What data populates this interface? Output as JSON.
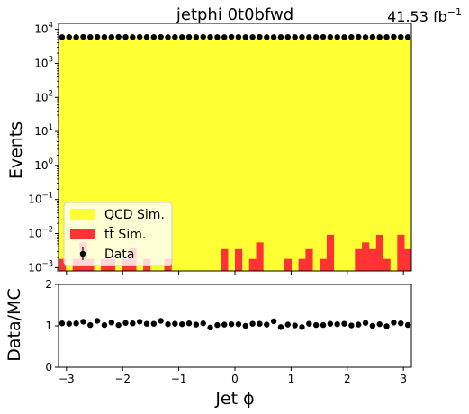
{
  "chart_data": [
    {
      "type": "bar",
      "title": "jetphi  0t0bfwd",
      "lumi_label": "41.53 fb",
      "lumi_exponent": "−1",
      "ylabel": "Events",
      "yscale": "log",
      "xlim": [
        -3.1416,
        3.1416
      ],
      "ylim": [
        0.0008,
        15000
      ],
      "bin_edges_range": [
        -3.1416,
        3.1416
      ],
      "n_bins": 50,
      "y_ticks": [
        {
          "mant": "10",
          "exp": "−3",
          "value": 0.001
        },
        {
          "mant": "10",
          "exp": "−2",
          "value": 0.01
        },
        {
          "mant": "10",
          "exp": "−1",
          "value": 0.1
        },
        {
          "mant": "10",
          "exp": "0",
          "value": 1
        },
        {
          "mant": "10",
          "exp": "1",
          "value": 10
        },
        {
          "mant": "10",
          "exp": "2",
          "value": 100
        },
        {
          "mant": "10",
          "exp": "3",
          "value": 1000
        },
        {
          "mant": "10",
          "exp": "4",
          "value": 10000
        }
      ],
      "series": [
        {
          "name": "QCD Sim.",
          "color": "#ffff33",
          "style": "stacked-fill",
          "values": [
            5900,
            5900,
            5900,
            5900,
            5900,
            5900,
            5900,
            5900,
            5900,
            5900,
            5900,
            5900,
            5900,
            5900,
            5900,
            5900,
            5900,
            5900,
            5900,
            5900,
            5900,
            5900,
            5900,
            5900,
            5900,
            5900,
            5900,
            5900,
            5900,
            5900,
            5900,
            5900,
            5900,
            5900,
            5900,
            5900,
            5900,
            5900,
            5900,
            5900,
            5900,
            5900,
            5900,
            5900,
            5900,
            5900,
            5900,
            5900,
            5900,
            5900
          ]
        },
        {
          "name": "tt̄ Sim.",
          "color": "#ff3333",
          "style": "bar",
          "values": [
            0.0018,
            0,
            0.0018,
            0.0055,
            0.0018,
            0,
            0.0018,
            0.0018,
            0,
            0.0018,
            0.0037,
            0,
            0.0018,
            0,
            0,
            0.0018,
            0,
            0,
            0,
            0,
            0,
            0,
            0,
            0.0035,
            0,
            0.0035,
            0,
            0.0018,
            0.0055,
            0,
            0,
            0,
            0.0018,
            0,
            0.0018,
            0.0035,
            0,
            0.0018,
            0.0092,
            0,
            0,
            0,
            0.0035,
            0.0055,
            0.0035,
            0.0092,
            0.0018,
            0,
            0.0092,
            0.0035
          ]
        },
        {
          "name": "Data",
          "color": "#000000",
          "style": "points",
          "values": [
            5900,
            5950,
            5900,
            6000,
            5950,
            6000,
            5950,
            5900,
            6000,
            5950,
            5900,
            6000,
            5950,
            5950,
            6000,
            5900,
            5950,
            5900,
            5950,
            5900,
            6000,
            5950,
            5900,
            5900,
            6000,
            5950,
            5900,
            5950,
            6000,
            5900,
            5900,
            5950,
            5950,
            5900,
            5950,
            5900,
            5900,
            6000,
            5950,
            5950,
            5900,
            5950,
            6000,
            5900,
            5950,
            5900,
            5950,
            6000,
            5950,
            5900
          ]
        }
      ],
      "legend": {
        "placement": "lower-left",
        "entries": [
          "QCD Sim.",
          "tt̄ Sim.",
          "Data"
        ]
      }
    },
    {
      "type": "scatter",
      "ylabel": "Data/MC",
      "xlabel": "Jet ϕ",
      "xlim": [
        -3.1416,
        3.1416
      ],
      "ylim": [
        0,
        2
      ],
      "y_ticks": [
        "0",
        "1",
        "2"
      ],
      "x_ticks": [
        "−3",
        "−2",
        "−1",
        "0",
        "1",
        "2",
        "3"
      ],
      "x_tick_values": [
        -3,
        -2,
        -1,
        0,
        1,
        2,
        3
      ],
      "ratio_values": [
        1.06,
        1.05,
        1.06,
        1.1,
        1.02,
        1.12,
        1.02,
        1.08,
        1.02,
        1.07,
        1.06,
        1.1,
        1.05,
        1.05,
        1.12,
        1.04,
        1.05,
        1.04,
        1.06,
        1.03,
        1.06,
        0.96,
        1.02,
        1.03,
        1.04,
        1.04,
        1.0,
        1.05,
        1.05,
        1.03,
        1.11,
        0.97,
        1.03,
        1.01,
        0.97,
        1.05,
        1.02,
        1.02,
        1.05,
        1.04,
        1.05,
        1.01,
        1.03,
        1.07,
        1.0,
        1.04,
        0.99,
        1.08,
        1.06,
        1.02
      ]
    }
  ]
}
